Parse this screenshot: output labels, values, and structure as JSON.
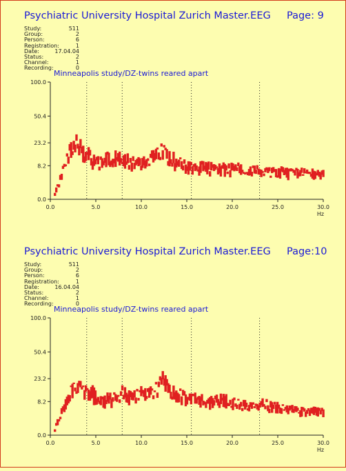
{
  "panels": [
    {
      "header": {
        "title": "Psychiatric University Hospital Zurich   Master.EEG",
        "page": "Page:  9"
      },
      "meta": [
        {
          "label": "Study:",
          "value": "511"
        },
        {
          "label": "Group:",
          "value": "2"
        },
        {
          "label": "Person:",
          "value": "6"
        },
        {
          "label": "Registration:",
          "value": "1"
        },
        {
          "label": "Date:",
          "value": "17.04.04"
        },
        {
          "label": "Status:",
          "value": "2"
        },
        {
          "label": "Channel:",
          "value": "1"
        },
        {
          "label": "Recording:",
          "value": "0"
        }
      ],
      "subtitle": "Minneapolis study/DZ-twins reared apart"
    },
    {
      "header": {
        "title": "Psychiatric University Hospital Zurich   Master.EEG",
        "page": "Page:10"
      },
      "meta": [
        {
          "label": "Study:",
          "value": "511"
        },
        {
          "label": "Group:",
          "value": "2"
        },
        {
          "label": "Person:",
          "value": "6"
        },
        {
          "label": "Registration:",
          "value": "1"
        },
        {
          "label": "Date:",
          "value": "16.04.04"
        },
        {
          "label": "Status:",
          "value": "2"
        },
        {
          "label": "Channel:",
          "value": "1"
        },
        {
          "label": "Recording:",
          "value": "0"
        }
      ],
      "subtitle": "Minneapolis study/DZ-twins reared apart"
    }
  ],
  "colors": {
    "background": "#fdfdb0",
    "border": "#d23a1a",
    "title": "#1a1ad6",
    "series": "#e02020"
  },
  "chart_data": [
    {
      "type": "line",
      "title": "Minneapolis study/DZ-twins reared apart",
      "xlabel": "Hz",
      "ylabel": "",
      "xlim": [
        0,
        30
      ],
      "ylim": [
        0,
        100
      ],
      "scale": "sqrt",
      "xticks": [
        "0.0",
        "5.0",
        "10.0",
        "15.0",
        "20.0",
        "25.0",
        "30.0"
      ],
      "yticks": [
        "100.0",
        "50.4",
        "23.2",
        "8.2",
        "0.0"
      ],
      "ytick_values": [
        100,
        50.4,
        23.2,
        8.2,
        0
      ],
      "markers": [
        4.0,
        7.9,
        15.5,
        23.0
      ],
      "x": [
        0.5,
        1,
        1.5,
        2,
        2.5,
        3,
        3.5,
        4,
        5,
        6,
        7,
        7.5,
        8,
        9,
        10,
        11,
        12,
        12.5,
        13,
        14,
        15,
        17,
        20,
        22,
        25,
        27,
        30
      ],
      "y": [
        0.2,
        2,
        8,
        15,
        19,
        25,
        17,
        16,
        10,
        11,
        12,
        12.5,
        11,
        10,
        11,
        12,
        15,
        19,
        13,
        10,
        8,
        7,
        6.8,
        6.2,
        5.5,
        5,
        4.5
      ]
    },
    {
      "type": "line",
      "title": "Minneapolis study/DZ-twins reared apart",
      "xlabel": "Hz",
      "ylabel": "",
      "xlim": [
        0,
        30
      ],
      "ylim": [
        0,
        100
      ],
      "scale": "sqrt",
      "xticks": [
        "0.0",
        "5.0",
        "10.0",
        "15.0",
        "20.0",
        "25.0",
        "30.0"
      ],
      "yticks": [
        "100.0",
        "50.4",
        "23.2",
        "8.2",
        "0.0"
      ],
      "ytick_values": [
        100,
        50.4,
        23.2,
        8.2,
        0
      ],
      "markers": [
        4.0,
        7.9,
        15.5,
        23.0
      ],
      "x": [
        0.5,
        1,
        1.5,
        2,
        2.5,
        3,
        3.5,
        4,
        5,
        6,
        7,
        8,
        9,
        10,
        11,
        12,
        12.5,
        13,
        14,
        15,
        17,
        20,
        22,
        23,
        25,
        27,
        30
      ],
      "y": [
        0.2,
        2,
        6,
        10,
        16,
        18,
        15,
        14,
        12,
        9,
        10,
        13,
        11,
        12,
        14,
        17,
        23,
        16,
        12,
        10,
        9,
        8,
        6,
        7,
        5.5,
        4.5,
        3.8
      ]
    }
  ]
}
